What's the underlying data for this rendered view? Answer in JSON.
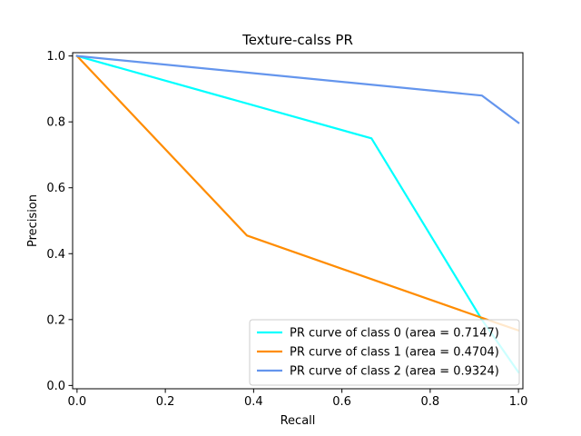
{
  "chart_data": {
    "type": "line",
    "title": "Texture-calss PR",
    "xlabel": "Recall",
    "ylabel": "Precision",
    "xlim": [
      -0.01,
      1.01
    ],
    "ylim": [
      -0.01,
      1.01
    ],
    "xticks": [
      0.0,
      0.2,
      0.4,
      0.6,
      0.8,
      1.0
    ],
    "yticks": [
      0.0,
      0.2,
      0.4,
      0.6,
      0.8,
      1.0
    ],
    "xtick_labels": [
      "0.0",
      "0.2",
      "0.4",
      "0.6",
      "0.8",
      "1.0"
    ],
    "ytick_labels": [
      "0.0",
      "0.2",
      "0.4",
      "0.6",
      "0.8",
      "1.0"
    ],
    "grid": false,
    "legend_position": "lower-right",
    "series": [
      {
        "name": "PR curve of class 0 (area = 0.7147)",
        "color": "#00ffff",
        "x": [
          0.0,
          0.667,
          0.917,
          1.0
        ],
        "y": [
          1.0,
          0.75,
          0.2,
          0.04
        ]
      },
      {
        "name": "PR curve of class 1 (area = 0.4704)",
        "color": "#ff8c00",
        "x": [
          0.0,
          0.385,
          0.95,
          1.0
        ],
        "y": [
          1.0,
          0.455,
          0.19,
          0.167
        ]
      },
      {
        "name": "PR curve of class 2 (area = 0.9324)",
        "color": "#6495ed",
        "x": [
          0.0,
          0.917,
          1.0
        ],
        "y": [
          1.0,
          0.88,
          0.797
        ]
      }
    ]
  }
}
